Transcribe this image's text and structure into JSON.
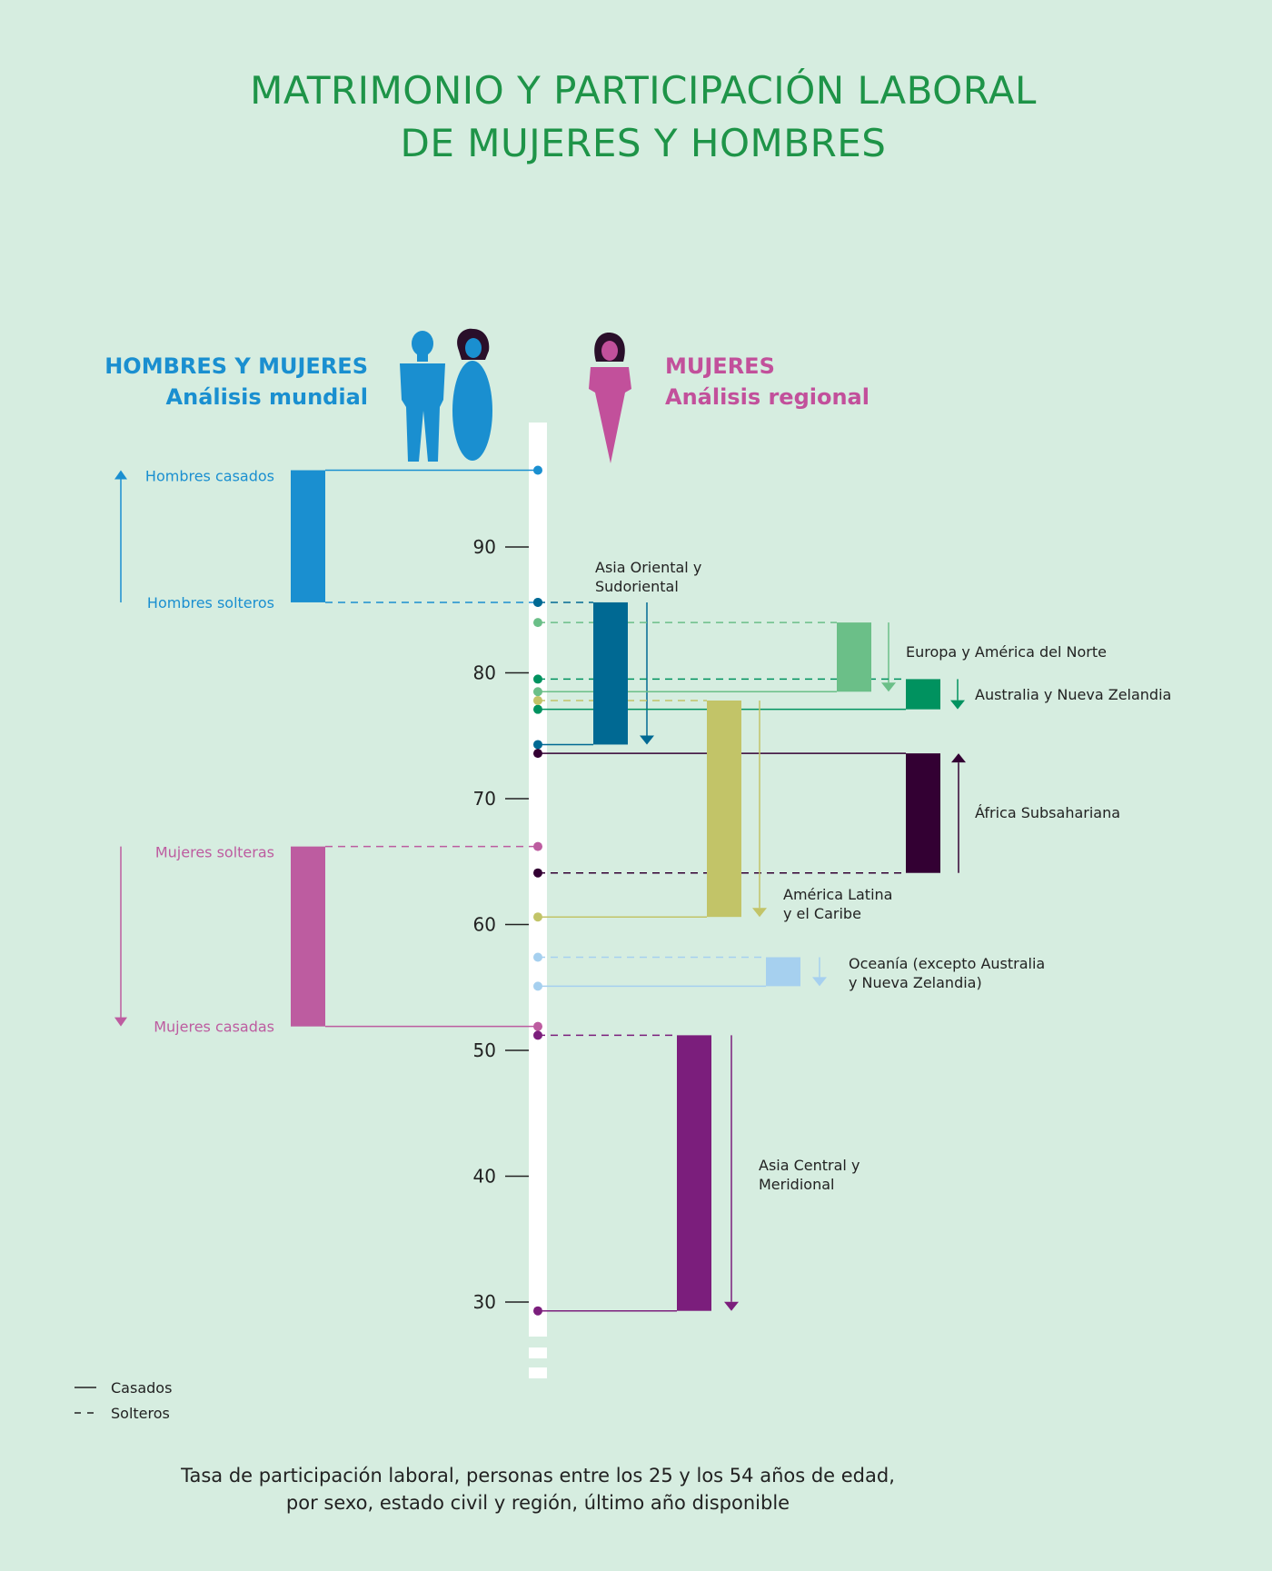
{
  "title": [
    "MATRIMONIO Y PARTICIPACIÓN LABORAL",
    "DE MUJERES Y HOMBRES"
  ],
  "left_header": {
    "line1": "HOMBRES Y MUJERES",
    "line2": "Análisis mundial",
    "color": "#1a8fd0"
  },
  "right_header": {
    "line1": "MUJERES",
    "line2": "Análisis regional",
    "color": "#c2509b"
  },
  "legend": {
    "married": "Casados",
    "single": "Solteros"
  },
  "caption": [
    "Tasa de participación laboral, personas entre los 25 y los 54 años de edad,",
    "por sexo, estado civil y región, último año disponible"
  ],
  "chart_data": {
    "type": "bar",
    "ticks": [
      30,
      40,
      50,
      60,
      70,
      80,
      90
    ],
    "global": [
      {
        "married_label": "Hombres casados",
        "single_label": "Hombres solteros",
        "married": 96.1,
        "single": 85.6,
        "color": "#1a8fd0"
      },
      {
        "married_label": "Mujeres casadas",
        "single_label": "Mujeres solteras",
        "married": 51.9,
        "single": 66.2,
        "color": "#bd5ca0"
      }
    ],
    "regions": [
      {
        "label": [
          "Asia Oriental y",
          "Sudoriental"
        ],
        "single": 85.6,
        "married": 74.3,
        "color": "#006993"
      },
      {
        "label": [
          "Europa y América del Norte"
        ],
        "single": 84.0,
        "married": 78.5,
        "color": "#6bbf88"
      },
      {
        "label": [
          "Australia y Nueva Zelandia"
        ],
        "single": 79.5,
        "married": 77.1,
        "color": "#00925f"
      },
      {
        "label": [
          "África Subsahariana"
        ],
        "single": 64.1,
        "married": 73.6,
        "color": "#330033"
      },
      {
        "label": [
          "América Latina",
          "y el Caribe"
        ],
        "single": 77.8,
        "married": 60.6,
        "color": "#c2c468"
      },
      {
        "label": [
          "Oceanía (excepto Australia",
          "y Nueva Zelandia)"
        ],
        "single": 57.4,
        "married": 55.1,
        "color": "#a6d0ef"
      },
      {
        "label": [
          "Asia Central y",
          "Meridional"
        ],
        "single": 51.2,
        "married": 29.3,
        "color": "#7b1e7c"
      }
    ]
  }
}
